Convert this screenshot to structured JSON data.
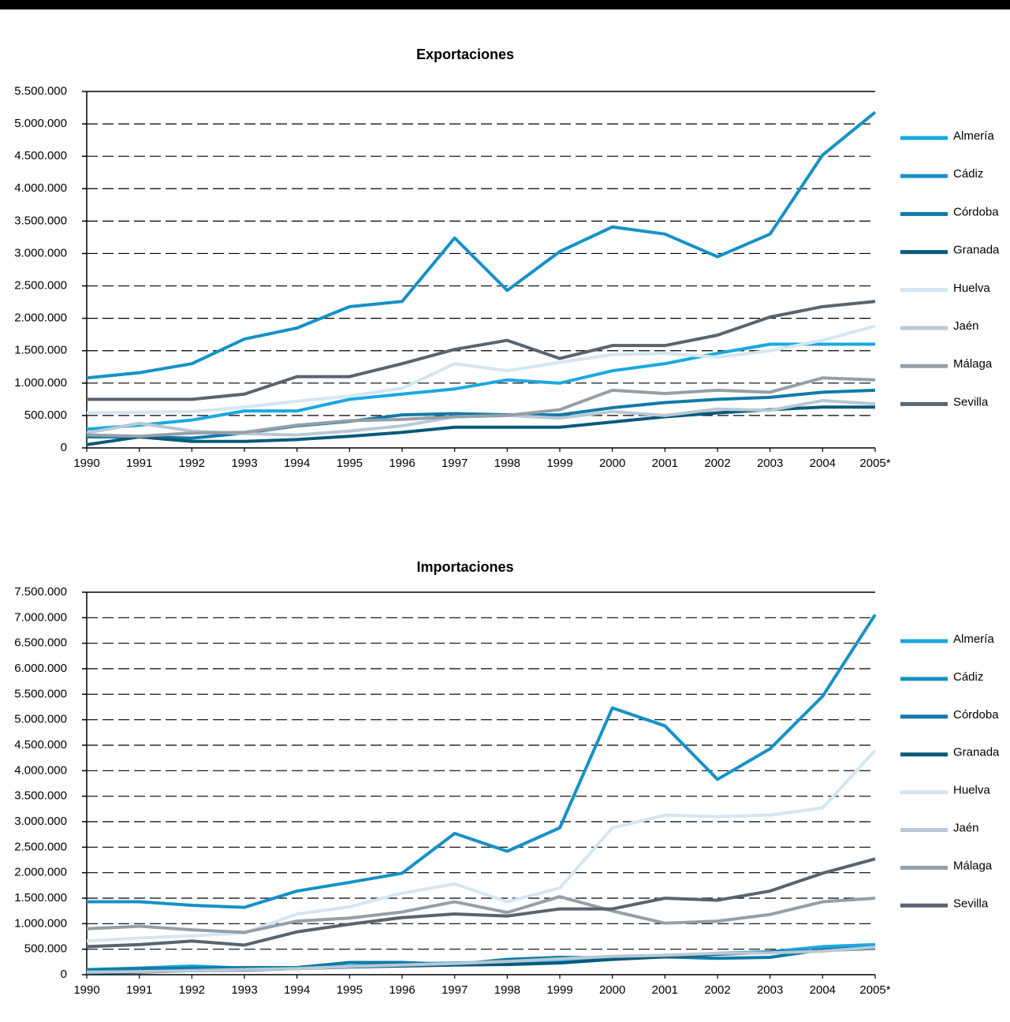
{
  "chart_data": [
    {
      "type": "line",
      "title": "Exportaciones",
      "categories": [
        "1990",
        "1991",
        "1992",
        "1993",
        "1994",
        "1995",
        "1996",
        "1997",
        "1998",
        "1999",
        "2000",
        "2001",
        "2002",
        "2003",
        "2004",
        "2005*"
      ],
      "ylim": [
        0,
        5500000
      ],
      "yticks": [
        0,
        {
          "value": 500000,
          "label": "500.000"
        },
        {
          "value": 1000000,
          "label": "1.000.000"
        },
        {
          "value": 1500000,
          "label": "1.500.000"
        },
        {
          "value": 2000000,
          "label": "2.000.000"
        },
        {
          "value": 2500000,
          "label": "2.500.000"
        },
        {
          "value": 3000000,
          "label": "3.000.000"
        },
        {
          "value": 3500000,
          "label": "3.500.000"
        },
        {
          "value": 4000000,
          "label": "4.000.000"
        },
        {
          "value": 4500000,
          "label": "4.500.000"
        },
        {
          "value": 5000000,
          "label": "5.000.000"
        },
        {
          "value": 5500000,
          "label": "5.500.000"
        }
      ],
      "grid": true,
      "legend": "right",
      "series": [
        {
          "name": "Almería",
          "color": "#1aa8e0",
          "values": [
            290000,
            350000,
            430000,
            570000,
            570000,
            750000,
            830000,
            910000,
            1050000,
            1000000,
            1190000,
            1300000,
            1460000,
            1600000,
            1600000,
            1600000
          ]
        },
        {
          "name": "Cádiz",
          "color": "#1591c8",
          "values": [
            1080000,
            1160000,
            1300000,
            1680000,
            1850000,
            2180000,
            2260000,
            3240000,
            2430000,
            3030000,
            3410000,
            3300000,
            2950000,
            3300000,
            4520000,
            5180000
          ]
        },
        {
          "name": "Córdoba",
          "color": "#117aa8",
          "values": [
            170000,
            170000,
            150000,
            230000,
            340000,
            410000,
            510000,
            530000,
            510000,
            510000,
            620000,
            700000,
            750000,
            780000,
            860000,
            890000
          ]
        },
        {
          "name": "Granada",
          "color": "#0a5a7a",
          "values": [
            50000,
            170000,
            100000,
            100000,
            130000,
            180000,
            240000,
            320000,
            320000,
            320000,
            400000,
            480000,
            540000,
            590000,
            630000,
            630000
          ]
        },
        {
          "name": "Huelva",
          "color": "#d4e6f1",
          "values": [
            540000,
            550000,
            560000,
            630000,
            720000,
            800000,
            920000,
            1300000,
            1190000,
            1320000,
            1440000,
            1460000,
            1400000,
            1500000,
            1660000,
            1880000
          ]
        },
        {
          "name": "Jaén",
          "color": "#b8c8d4",
          "values": [
            230000,
            380000,
            260000,
            220000,
            200000,
            260000,
            340000,
            480000,
            500000,
            460000,
            560000,
            500000,
            600000,
            580000,
            730000,
            680000
          ]
        },
        {
          "name": "Málaga",
          "color": "#959fa8",
          "values": [
            200000,
            180000,
            230000,
            240000,
            350000,
            420000,
            440000,
            480000,
            500000,
            590000,
            890000,
            840000,
            890000,
            860000,
            1080000,
            1050000
          ]
        },
        {
          "name": "Sevilla",
          "color": "#5a6470",
          "values": [
            750000,
            750000,
            750000,
            830000,
            1100000,
            1100000,
            1300000,
            1520000,
            1660000,
            1380000,
            1580000,
            1580000,
            1740000,
            2020000,
            2180000,
            2260000
          ]
        }
      ]
    },
    {
      "type": "line",
      "title": "Importaciones",
      "categories": [
        "1990",
        "1991",
        "1992",
        "1993",
        "1994",
        "1995",
        "1996",
        "1997",
        "1998",
        "1999",
        "2000",
        "2001",
        "2002",
        "2003",
        "2004",
        "2005*"
      ],
      "ylim": [
        0,
        7500000
      ],
      "yticks": [
        0,
        {
          "value": 500000,
          "label": "500.000"
        },
        {
          "value": 1000000,
          "label": "1.000.000"
        },
        {
          "value": 1500000,
          "label": "1.500.000"
        },
        {
          "value": 2000000,
          "label": "2.000.000"
        },
        {
          "value": 2500000,
          "label": "2.500.000"
        },
        {
          "value": 3000000,
          "label": "3.000.000"
        },
        {
          "value": 3500000,
          "label": "3.500.000"
        },
        {
          "value": 4000000,
          "label": "4.000.000"
        },
        {
          "value": 4500000,
          "label": "4.500.000"
        },
        {
          "value": 5000000,
          "label": "5.000.000"
        },
        {
          "value": 5500000,
          "label": "5.500.000"
        },
        {
          "value": 6000000,
          "label": "6.000.000"
        },
        {
          "value": 6500000,
          "label": "6.500.000"
        },
        {
          "value": 7000000,
          "label": "7.000.000"
        },
        {
          "value": 7500000,
          "label": "7.500.000"
        }
      ],
      "grid": true,
      "legend": "right",
      "series": [
        {
          "name": "Almería",
          "color": "#1aa8e0",
          "values": [
            100000,
            130000,
            170000,
            130000,
            130000,
            170000,
            210000,
            230000,
            250000,
            280000,
            320000,
            350000,
            420000,
            450000,
            550000,
            590000
          ]
        },
        {
          "name": "Cádiz",
          "color": "#1591c8",
          "values": [
            1430000,
            1430000,
            1360000,
            1320000,
            1640000,
            1810000,
            1990000,
            2770000,
            2420000,
            2880000,
            5230000,
            4880000,
            3830000,
            4430000,
            5460000,
            7060000
          ]
        },
        {
          "name": "Córdoba",
          "color": "#117aa8",
          "values": [
            90000,
            120000,
            130000,
            140000,
            140000,
            240000,
            240000,
            200000,
            300000,
            340000,
            330000,
            350000,
            320000,
            340000,
            490000,
            540000
          ]
        },
        {
          "name": "Granada",
          "color": "#0a5a7a",
          "values": [
            30000,
            50000,
            80000,
            90000,
            120000,
            150000,
            170000,
            190000,
            200000,
            230000,
            300000,
            350000,
            400000,
            440000,
            470000,
            520000
          ]
        },
        {
          "name": "Huelva",
          "color": "#d4e6f1",
          "values": [
            660000,
            720000,
            760000,
            820000,
            1190000,
            1330000,
            1600000,
            1780000,
            1430000,
            1700000,
            2880000,
            3130000,
            3100000,
            3130000,
            3270000,
            4400000
          ]
        },
        {
          "name": "Jaén",
          "color": "#b8c8d4",
          "values": [
            50000,
            60000,
            80000,
            100000,
            120000,
            160000,
            190000,
            220000,
            260000,
            310000,
            360000,
            380000,
            420000,
            430000,
            460000,
            540000
          ]
        },
        {
          "name": "Málaga",
          "color": "#959fa8",
          "values": [
            900000,
            950000,
            880000,
            830000,
            1050000,
            1110000,
            1230000,
            1430000,
            1220000,
            1530000,
            1250000,
            1010000,
            1050000,
            1180000,
            1430000,
            1500000
          ]
        },
        {
          "name": "Sevilla",
          "color": "#5a6470",
          "values": [
            550000,
            590000,
            660000,
            580000,
            840000,
            990000,
            1120000,
            1190000,
            1150000,
            1290000,
            1290000,
            1500000,
            1460000,
            1640000,
            1990000,
            2270000
          ]
        }
      ]
    }
  ]
}
